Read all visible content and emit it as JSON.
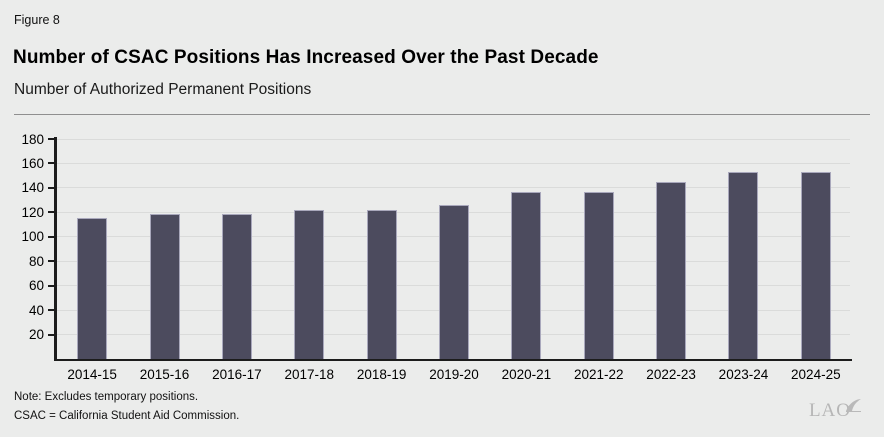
{
  "figure_label": "Figure 8",
  "title": "Number of CSAC Positions Has Increased Over the Past Decade",
  "subtitle": "Number of Authorized Permanent Positions",
  "chart_data": {
    "type": "bar",
    "categories": [
      "2014-15",
      "2015-16",
      "2016-17",
      "2017-18",
      "2018-19",
      "2019-20",
      "2020-21",
      "2021-22",
      "2022-23",
      "2023-24",
      "2024-25"
    ],
    "values": [
      115,
      119,
      119,
      122,
      122,
      126,
      137,
      137,
      145,
      153,
      153
    ],
    "title": "Number of CSAC Positions Has Increased Over the Past Decade",
    "subtitle": "Number of Authorized Permanent Positions",
    "xlabel": "",
    "ylabel": "",
    "ylim": [
      0,
      180
    ],
    "ytick_step": 20,
    "grid": true,
    "legend": "none",
    "bar_color": "#4c4b5e",
    "bar_border_color": "#a9a8bc"
  },
  "notes": [
    "Note: Excludes temporary positions.",
    "CSAC = California Student Aid Commission."
  ],
  "logo_text": "LAO",
  "colors": {
    "background": "#ebeceb",
    "bar": "#4c4b5e",
    "gridline": "#dadbda",
    "axis": "#1c1c1c",
    "divider": "#8f8f8f",
    "logo": "#b6b6b6"
  }
}
